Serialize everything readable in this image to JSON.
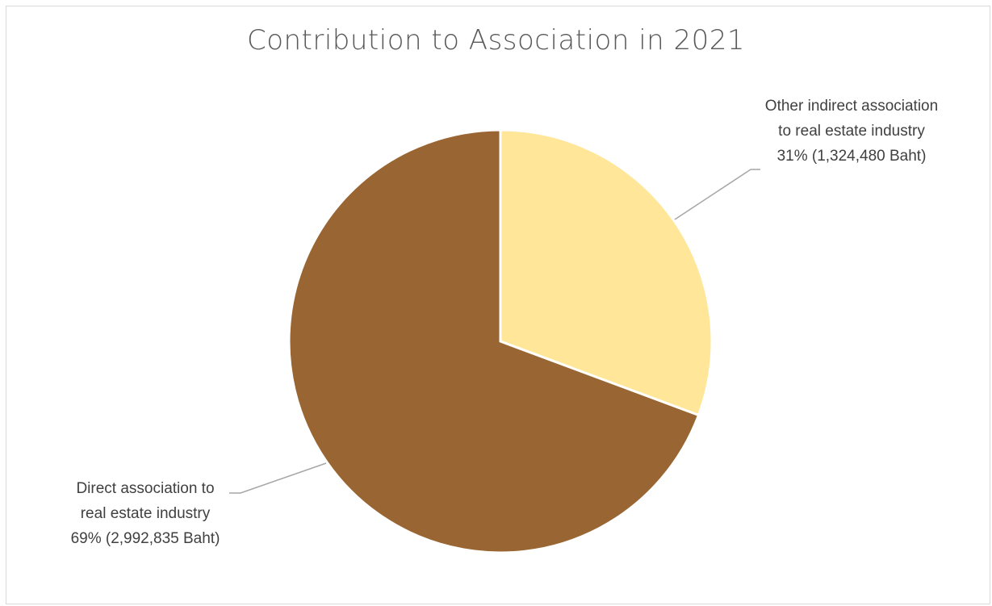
{
  "chart_data": {
    "type": "pie",
    "title": "Contribution to Association in 2021",
    "slices": [
      {
        "name": "Other indirect association to real estate industry",
        "name_lines": [
          "Other indirect association",
          "to real estate industry"
        ],
        "percent": 31,
        "value": 1324480,
        "value_label": "31% (1,324,480 Baht)",
        "color": "#FFE699"
      },
      {
        "name": "Direct association to real estate industry",
        "name_lines": [
          "Direct association to",
          "real estate industry"
        ],
        "percent": 69,
        "value": 2992835,
        "value_label": "69% (2,992,835 Baht)",
        "color": "#996633"
      }
    ],
    "start_angle": "12 o'clock, clockwise",
    "legend": "none"
  }
}
